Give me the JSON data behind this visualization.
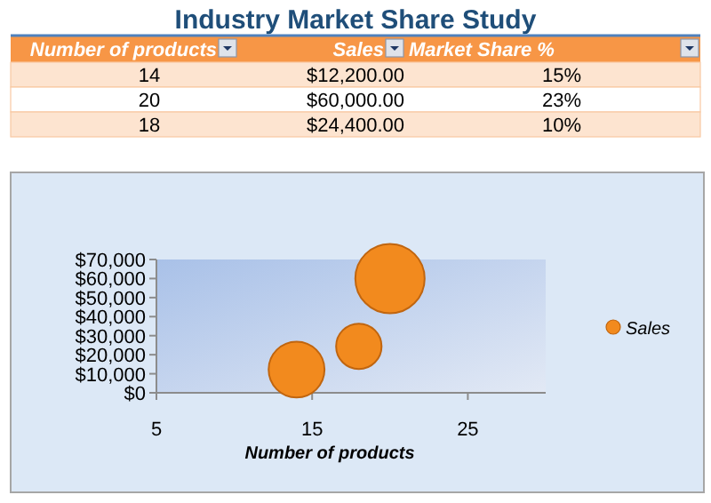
{
  "chart_data": {
    "type": "bubble",
    "title": "Industry Market Share Study",
    "xlabel": "Number of products",
    "x": [
      14,
      20,
      18
    ],
    "series": [
      {
        "name": "Sales",
        "color": "#f28a1e",
        "values": [
          12200,
          60000,
          24400
        ],
        "sizes": [
          0.65,
          1,
          0.43
        ]
      }
    ],
    "annotations": [
      "Number of products",
      "Sales",
      "Market Share %",
      "14",
      "$12,200.00",
      "15%",
      "20",
      "$60,000.00",
      "23%",
      "18",
      "$24,400.00",
      "10%"
    ],
    "xlim": [
      5,
      30
    ],
    "xticks": [
      5,
      15,
      25
    ],
    "ylim": [
      0,
      70000
    ],
    "yticks": [
      {
        "value": 0,
        "label": "$0"
      },
      {
        "value": 10000,
        "label": "$10,000"
      },
      {
        "value": 20000,
        "label": "$20,000"
      },
      {
        "value": 30000,
        "label": "$30,000"
      },
      {
        "value": 40000,
        "label": "$40,000"
      },
      {
        "value": 50000,
        "label": "$50,000"
      },
      {
        "value": 60000,
        "label": "$60,000"
      },
      {
        "value": 70000,
        "label": "$70,000"
      }
    ],
    "legend": "right",
    "grid": false
  }
}
